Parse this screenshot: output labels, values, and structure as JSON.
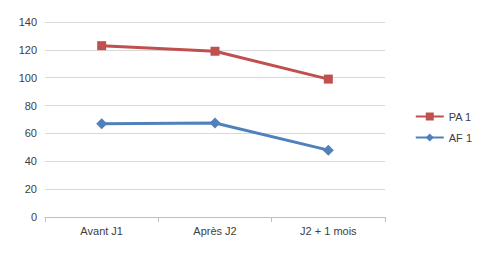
{
  "chart_data": {
    "type": "line",
    "categories": [
      "Avant J1",
      "Après J2",
      "J2 + 1 mois"
    ],
    "series": [
      {
        "name": "PA 1",
        "color": "#c0504d",
        "marker": "square",
        "values": [
          123,
          119,
          99
        ]
      },
      {
        "name": "AF 1",
        "color": "#4f81bd",
        "marker": "diamond",
        "values": [
          67,
          67.5,
          48
        ]
      }
    ],
    "ylim": [
      0,
      140
    ],
    "yticks": [
      0,
      20,
      40,
      60,
      80,
      100,
      120,
      140
    ],
    "grid": true,
    "legend": "right"
  }
}
